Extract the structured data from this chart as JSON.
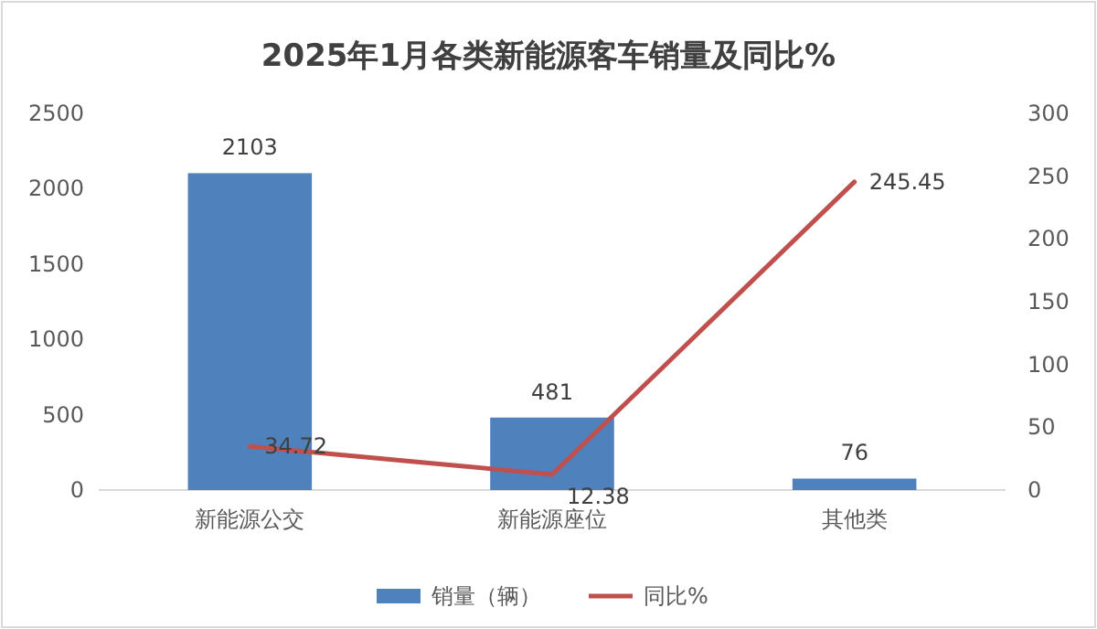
{
  "chart_data": {
    "type": "bar",
    "title": "2025年1月各类新能源客车销量及同比%",
    "categories": [
      "新能源公交",
      "新能源座位",
      "其他类"
    ],
    "series": [
      {
        "name": "销量（辆）",
        "color": "#4f81bd",
        "values": [
          2103,
          481,
          76
        ]
      },
      {
        "name": "同比%",
        "type": "line",
        "axis": "y2",
        "color": "#c0504d",
        "values": [
          34.72,
          12.38,
          245.45
        ]
      }
    ],
    "ylim": [
      0,
      2500
    ],
    "yticks": [
      0,
      500,
      1000,
      1500,
      2000,
      2500
    ],
    "y2lim": [
      0,
      300
    ],
    "y2ticks": [
      0,
      50,
      100,
      150,
      200,
      250,
      300
    ],
    "data_labels": true,
    "legend": "bottom"
  }
}
